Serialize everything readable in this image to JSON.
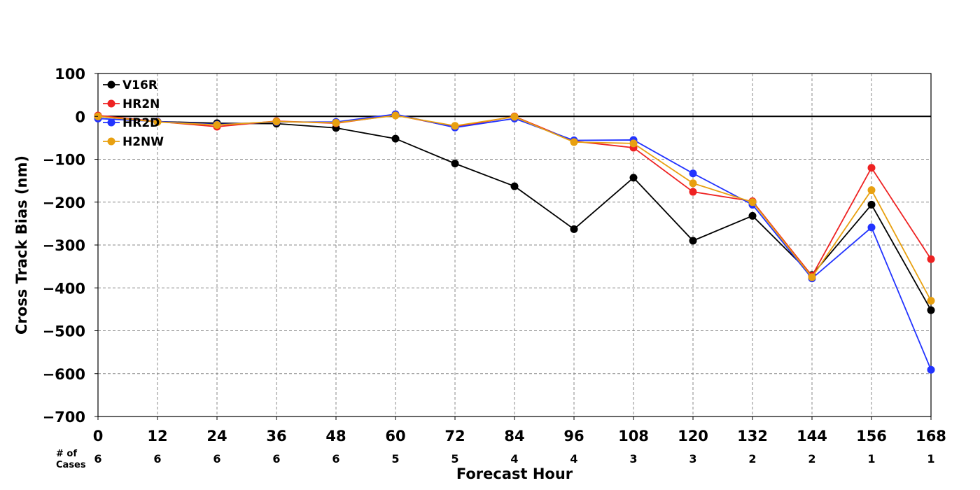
{
  "chart_data": {
    "type": "line",
    "xlabel": "Forecast Hour",
    "ylabel": "Cross Track Bias (nm)",
    "x": [
      0,
      12,
      24,
      36,
      48,
      60,
      72,
      84,
      96,
      108,
      120,
      132,
      144,
      156,
      168
    ],
    "x_ticks": [
      "0",
      "12",
      "24",
      "36",
      "48",
      "60",
      "72",
      "84",
      "96",
      "108",
      "120",
      "132",
      "144",
      "156",
      "168"
    ],
    "xlim": [
      0,
      168
    ],
    "ylim": [
      -700,
      100
    ],
    "y_ticks": [
      100,
      0,
      -100,
      -200,
      -300,
      -400,
      -500,
      -600,
      -700
    ],
    "y_tick_labels": [
      "100",
      "0",
      "−100",
      "−200",
      "−300",
      "−400",
      "−500",
      "−600",
      "−700"
    ],
    "grid": true,
    "legend_position": "top-left",
    "cases_label": [
      "# of",
      "Cases"
    ],
    "cases": [
      "6",
      "6",
      "6",
      "6",
      "6",
      "5",
      "5",
      "4",
      "4",
      "3",
      "3",
      "2",
      "2",
      "1",
      "1"
    ],
    "series": [
      {
        "name": "V16R",
        "color": "#000000",
        "values": [
          0,
          -12,
          -16,
          -17,
          -27,
          -52,
          -110,
          -163,
          -263,
          -143,
          -290,
          -232,
          -370,
          -206,
          -452
        ]
      },
      {
        "name": "HR2N",
        "color": "#ee2222",
        "values": [
          2,
          -12,
          -24,
          -11,
          -16,
          3,
          -25,
          0,
          -58,
          -73,
          -176,
          -198,
          -372,
          -120,
          -333
        ]
      },
      {
        "name": "HR2D",
        "color": "#2233ff",
        "values": [
          -5,
          -12,
          -19,
          -13,
          -13,
          5,
          -26,
          -5,
          -56,
          -55,
          -133,
          -206,
          -378,
          -259,
          -591
        ]
      },
      {
        "name": "H2NW",
        "color": "#e8a010",
        "values": [
          0,
          -13,
          -20,
          -12,
          -15,
          2,
          -22,
          -1,
          -60,
          -63,
          -156,
          -200,
          -375,
          -172,
          -430
        ]
      }
    ]
  }
}
